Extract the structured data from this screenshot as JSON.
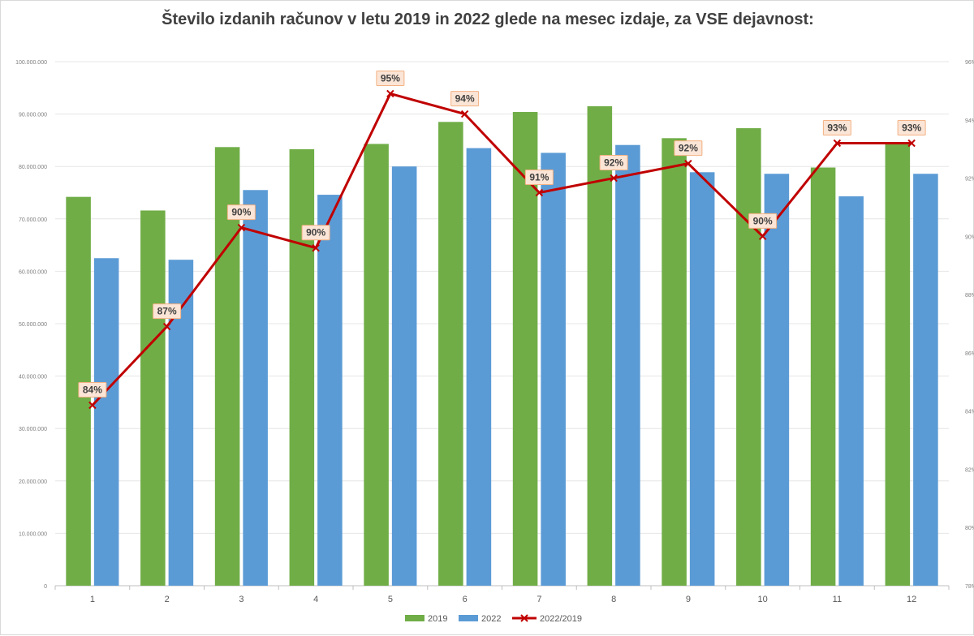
{
  "chart_data": {
    "type": "bar",
    "title": "Število izdanih računov v letu 2019 in 2022 glede na mesec izdaje, za VSE dejavnost:",
    "categories": [
      "1",
      "2",
      "3",
      "4",
      "5",
      "6",
      "7",
      "8",
      "9",
      "10",
      "11",
      "12"
    ],
    "series": [
      {
        "name": "2019",
        "type": "bar",
        "axis": "left",
        "color": "#70ad47",
        "values": [
          74200000,
          71600000,
          83700000,
          83300000,
          84300000,
          88500000,
          90400000,
          91500000,
          85400000,
          87300000,
          79800000,
          84300000
        ]
      },
      {
        "name": "2022",
        "type": "bar",
        "axis": "left",
        "color": "#5b9bd5",
        "values": [
          62500000,
          62200000,
          75500000,
          74600000,
          80000000,
          83500000,
          82600000,
          84100000,
          78900000,
          78600000,
          74300000,
          78600000
        ]
      },
      {
        "name": "2022/2019",
        "type": "line",
        "axis": "right",
        "color": "#c00000",
        "values": [
          0.842,
          0.869,
          0.903,
          0.896,
          0.949,
          0.942,
          0.915,
          0.92,
          0.925,
          0.9,
          0.932,
          0.932
        ],
        "data_labels": [
          "84%",
          "87%",
          "90%",
          "90%",
          "95%",
          "94%",
          "91%",
          "92%",
          "92%",
          "90%",
          "93%",
          "93%"
        ]
      }
    ],
    "y_left": {
      "min": 0,
      "max": 100000000,
      "ticks": [
        "0",
        "10.000.000",
        "20.000.000",
        "30.000.000",
        "40.000.000",
        "50.000.000",
        "60.000.000",
        "70.000.000",
        "80.000.000",
        "90.000.000",
        "100.000.000"
      ]
    },
    "y_right": {
      "min": 0.78,
      "max": 0.96,
      "ticks": [
        "78%",
        "80%",
        "82%",
        "84%",
        "86%",
        "88%",
        "90%",
        "92%",
        "94%",
        "96%"
      ]
    },
    "grid": true,
    "legend_position": "bottom"
  }
}
